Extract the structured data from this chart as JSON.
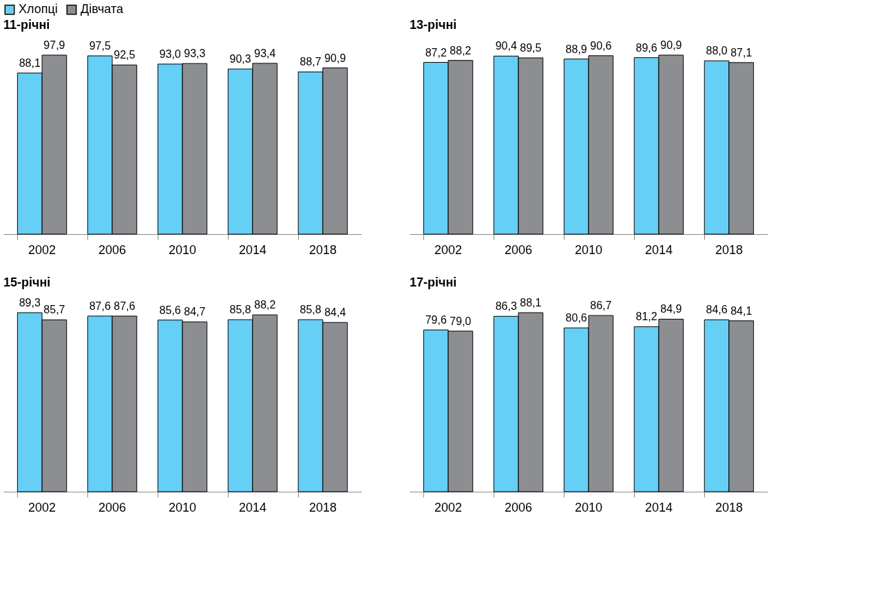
{
  "chart_data": [
    {
      "type": "bar",
      "title": "11-річні",
      "categories": [
        "2002",
        "2006",
        "2010",
        "2014",
        "2018"
      ],
      "legend": "top",
      "tick_labels": "x",
      "series": [
        {
          "name": "Хлопці",
          "color": "#66cff5",
          "values": [
            88.1,
            97.5,
            93.0,
            90.3,
            88.7
          ],
          "value_labels": [
            "88,1",
            "97,5",
            "93,0",
            "90,3",
            "88,7"
          ]
        },
        {
          "name": "Дівчата",
          "color": "#8c8e91",
          "values": [
            97.9,
            92.5,
            93.3,
            93.4,
            90.9
          ],
          "value_labels": [
            "97,9",
            "92,5",
            "93,3",
            "93,4",
            "90,9"
          ]
        }
      ]
    },
    {
      "type": "bar",
      "title": "13-річні",
      "categories": [
        "2002",
        "2006",
        "2010",
        "2014",
        "2018"
      ],
      "tick_labels": "x",
      "series": [
        {
          "name": "Хлопці",
          "color": "#66cff5",
          "values": [
            87.2,
            90.4,
            88.9,
            89.6,
            88.0
          ],
          "value_labels": [
            "87,2",
            "90,4",
            "88,9",
            "89,6",
            "88,0"
          ]
        },
        {
          "name": "Дівчата",
          "color": "#8c8e91",
          "values": [
            88.2,
            89.5,
            90.6,
            90.9,
            87.1
          ],
          "value_labels": [
            "88,2",
            "89,5",
            "90,6",
            "90,9",
            "87,1"
          ]
        }
      ]
    },
    {
      "type": "bar",
      "title": "15-річні",
      "categories": [
        "2002",
        "2006",
        "2010",
        "2014",
        "2018"
      ],
      "tick_labels": "x",
      "series": [
        {
          "name": "Хлопці",
          "color": "#66cff5",
          "values": [
            89.3,
            87.6,
            85.6,
            85.8,
            85.8
          ],
          "value_labels": [
            "89,3",
            "87,6",
            "85,6",
            "85,8",
            "85,8"
          ]
        },
        {
          "name": "Дівчата",
          "color": "#8c8e91",
          "values": [
            85.7,
            87.6,
            84.7,
            88.2,
            84.4
          ],
          "value_labels": [
            "85,7",
            "87,6",
            "84,7",
            "88,2",
            "84,4"
          ]
        }
      ]
    },
    {
      "type": "bar",
      "title": "17-річні",
      "categories": [
        "2002",
        "2006",
        "2010",
        "2014",
        "2018"
      ],
      "tick_labels": "x",
      "series": [
        {
          "name": "Хлопці",
          "color": "#66cff5",
          "values": [
            79.6,
            86.3,
            80.6,
            81.2,
            84.6
          ],
          "value_labels": [
            "79,6",
            "86,3",
            "80,6",
            "81,2",
            "84,6"
          ]
        },
        {
          "name": "Дівчата",
          "color": "#8c8e91",
          "values": [
            79.0,
            88.1,
            86.7,
            84.9,
            84.1
          ],
          "value_labels": [
            "79,0",
            "88,1",
            "86,7",
            "84,9",
            "84,1"
          ]
        }
      ]
    }
  ]
}
